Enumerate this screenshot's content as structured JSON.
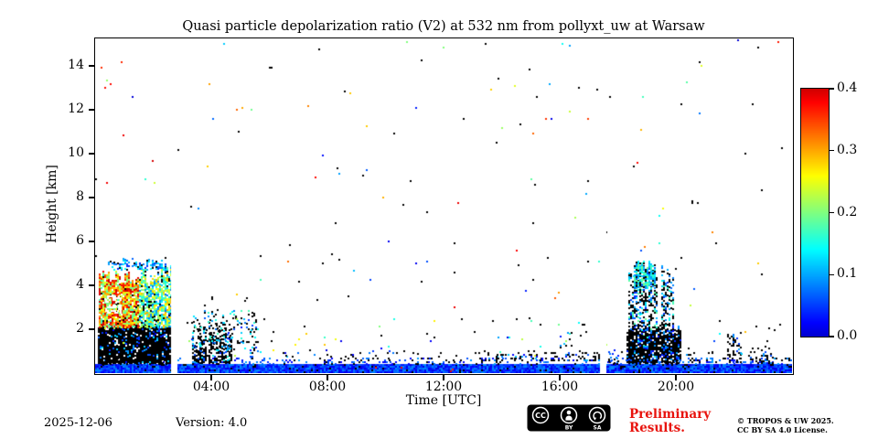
{
  "colors": {
    "preliminary_red": "#e8130d",
    "axis_black": "#000000",
    "background": "#ffffff"
  },
  "footer": {
    "date": "2025-12-06",
    "version": "Version: 4.0",
    "preliminary_line1": "Preliminary",
    "preliminary_line2": "Results.",
    "license_line1": "© TROPOS & UW 2025.",
    "license_line2": "CC BY SA 4.0 License.",
    "badge": {
      "cc": "CC",
      "by": "BY",
      "sa": "SA"
    }
  },
  "chart_data": {
    "type": "heatmap",
    "title": "Quasi particle depolarization ratio (V2) at 532 nm from pollyxt_uw at Warsaw",
    "xlabel": "Time [UTC]",
    "ylabel": "Height [km]",
    "x_range_hours": [
      0,
      24
    ],
    "y_range_km": [
      0,
      15.25
    ],
    "xticks": [
      {
        "hour": 4,
        "label": "04:00"
      },
      {
        "hour": 8,
        "label": "08:00"
      },
      {
        "hour": 12,
        "label": "12:00"
      },
      {
        "hour": 16,
        "label": "16:00"
      },
      {
        "hour": 20,
        "label": "20:00"
      }
    ],
    "yticks_km": [
      2,
      4,
      6,
      8,
      10,
      12,
      14
    ],
    "colorbar": {
      "min": 0.0,
      "max": 0.4,
      "colormap": "jet",
      "ticks": [
        {
          "value": 0.0,
          "label": "0.0"
        },
        {
          "value": 0.1,
          "label": "0.1"
        },
        {
          "value": 0.2,
          "label": "0.2"
        },
        {
          "value": 0.3,
          "label": "0.3"
        },
        {
          "value": 0.4,
          "label": "0.4"
        }
      ]
    },
    "gaps_hours": [
      [
        2.62,
        2.85
      ],
      [
        17.38,
        17.6
      ]
    ],
    "features": [
      {
        "name": "ground-layer",
        "t": [
          0.0,
          24.0
        ],
        "h": [
          0.02,
          0.42
        ],
        "density": 1.0,
        "black": 0.05,
        "v": [
          0.005,
          0.09
        ]
      },
      {
        "name": "ground-top-speckle",
        "t": [
          0.0,
          24.0
        ],
        "h": [
          0.42,
          0.72
        ],
        "density": 0.18,
        "black": 0.35,
        "v": [
          0.01,
          0.1
        ]
      },
      {
        "name": "low-level-speckle",
        "t": [
          5.0,
          17.3
        ],
        "h": [
          0.6,
          1.05
        ],
        "density": 0.05,
        "black": 0.7,
        "v": [
          0.01,
          0.12
        ]
      },
      {
        "name": "afternoon-dash-line",
        "t": [
          13.8,
          17.35
        ],
        "h": [
          0.55,
          0.95
        ],
        "density": 0.2,
        "black": 0.75,
        "v": [
          0.01,
          0.1
        ]
      },
      {
        "name": "pre-evening-dots",
        "t": [
          17.6,
          18.3
        ],
        "h": [
          0.45,
          1.1
        ],
        "density": 0.15,
        "black": 0.7,
        "v": [
          0.01,
          0.1
        ]
      },
      {
        "name": "evening-tail-dots",
        "t": [
          20.15,
          21.3
        ],
        "h": [
          0.45,
          0.95
        ],
        "density": 0.12,
        "black": 0.7,
        "v": [
          0.01,
          0.1
        ]
      },
      {
        "name": "morning-cloud-black-base",
        "t": [
          0.1,
          2.62
        ],
        "h": [
          0.45,
          2.3
        ],
        "density": 0.93,
        "black": 0.86,
        "v": [
          0.02,
          0.13
        ],
        "ragged": 0.15
      },
      {
        "name": "morning-cloud-core-left",
        "t": [
          0.12,
          1.5
        ],
        "h": [
          2.1,
          4.75
        ],
        "density": 0.9,
        "black": 0.05,
        "v": [
          0.16,
          0.43
        ],
        "ragged": 0.25
      },
      {
        "name": "morning-cloud-core-right",
        "t": [
          1.5,
          2.58
        ],
        "h": [
          2.1,
          4.95
        ],
        "density": 0.82,
        "black": 0.1,
        "v": [
          0.07,
          0.3
        ],
        "ragged": 0.3
      },
      {
        "name": "morning-cloud-hole",
        "t": [
          0.35,
          0.9
        ],
        "h": [
          2.75,
          3.55
        ],
        "density": 0.55,
        "erase": true
      },
      {
        "name": "morning-cloud-top-band",
        "t": [
          0.45,
          2.45
        ],
        "h": [
          4.75,
          5.25
        ],
        "density": 0.5,
        "black": 0.2,
        "v": [
          0.04,
          0.15
        ],
        "ragged": 0.5
      },
      {
        "name": "midmorning-plume-core",
        "t": [
          3.35,
          4.7
        ],
        "h": [
          0.45,
          2.6
        ],
        "density": 0.6,
        "black": 0.72,
        "v": [
          0.02,
          0.16
        ],
        "fade_top": true,
        "ragged": 0.3
      },
      {
        "name": "midmorning-plume-upper",
        "t": [
          3.3,
          5.6
        ],
        "h": [
          1.0,
          3.65
        ],
        "density": 0.2,
        "black": 0.6,
        "v": [
          0.02,
          0.18
        ],
        "fade_top": true,
        "ragged": 0.4
      },
      {
        "name": "midafternoon-wisp",
        "t": [
          16.0,
          16.5
        ],
        "h": [
          0.5,
          2.2
        ],
        "density": 0.1,
        "black": 0.6,
        "v": [
          0.02,
          0.12
        ],
        "fade_top": true
      },
      {
        "name": "evening-column-main",
        "t": [
          18.35,
          19.35
        ],
        "h": [
          0.45,
          5.15
        ],
        "density": 0.5,
        "black": 0.5,
        "v": [
          0.03,
          0.2
        ],
        "ragged": 0.2
      },
      {
        "name": "evening-column-top",
        "t": [
          18.55,
          19.3
        ],
        "h": [
          3.9,
          5.15
        ],
        "density": 0.85,
        "black": 0.12,
        "v": [
          0.06,
          0.2
        ],
        "ragged": 0.25
      },
      {
        "name": "evening-black-base",
        "t": [
          18.3,
          20.15
        ],
        "h": [
          0.45,
          2.25
        ],
        "density": 0.82,
        "black": 0.82,
        "v": [
          0.02,
          0.1
        ],
        "ragged": 0.2
      },
      {
        "name": "evening-column-2",
        "t": [
          19.5,
          19.9
        ],
        "h": [
          2.2,
          4.95
        ],
        "density": 0.5,
        "black": 0.55,
        "v": [
          0.04,
          0.18
        ],
        "ragged": 0.3
      },
      {
        "name": "late-blob-1",
        "t": [
          21.75,
          22.2
        ],
        "h": [
          0.45,
          1.95
        ],
        "density": 0.6,
        "black": 0.75,
        "v": [
          0.02,
          0.1
        ],
        "fade_top": true
      },
      {
        "name": "late-blob-2",
        "t": [
          22.55,
          23.35
        ],
        "h": [
          0.45,
          1.25
        ],
        "density": 0.45,
        "black": 0.6,
        "v": [
          0.02,
          0.1
        ],
        "fade_top": true
      },
      {
        "name": "ground-hot-dots",
        "t": [
          9.5,
          13.0
        ],
        "h": [
          0.08,
          0.3
        ],
        "density": 0.012,
        "black": 0.0,
        "v": [
          0.3,
          0.43
        ]
      },
      {
        "name": "scatter-noise-low",
        "t": [
          0,
          24
        ],
        "h": [
          0.75,
          2.5
        ],
        "density": 0.01,
        "black": 0.5,
        "v": [
          0.0,
          0.3
        ]
      },
      {
        "name": "scatter-noise-high",
        "t": [
          0,
          24
        ],
        "h": [
          2.5,
          15.2
        ],
        "density": 0.0025,
        "black": 0.35,
        "v": [
          0.0,
          0.4
        ]
      }
    ]
  }
}
